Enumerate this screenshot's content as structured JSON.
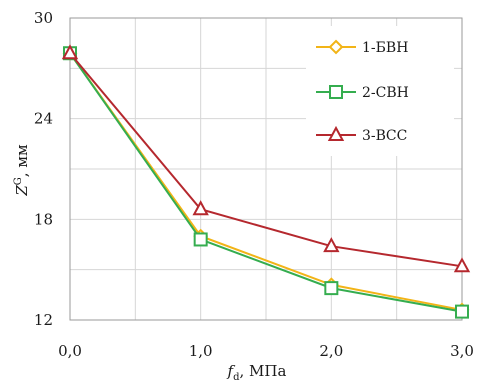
{
  "chart_data": {
    "type": "line",
    "xlabel": "f",
    "xlabel_sub": "d",
    "xlabel_unit": ", МПа",
    "ylabel": "Z",
    "ylabel_sup": "G",
    "ylabel_unit": ", мм",
    "x": [
      0.0,
      1.0,
      2.0,
      3.0
    ],
    "x_tick_labels": [
      "0,0",
      "1,0",
      "2,0",
      "3,0"
    ],
    "xlim": [
      0,
      3
    ],
    "ylim": [
      12,
      30
    ],
    "y_ticks": [
      12,
      18,
      24,
      30
    ],
    "y_tick_labels": [
      "12",
      "18",
      "24",
      "30"
    ],
    "grid": true,
    "legend_position": "top-right",
    "series": [
      {
        "name": "1-БВН",
        "marker": "diamond",
        "color": "#f2b417",
        "values": [
          27.9,
          17.0,
          14.1,
          12.6
        ]
      },
      {
        "name": "2-СВН",
        "marker": "square",
        "color": "#35ad4f",
        "values": [
          27.9,
          16.8,
          13.9,
          12.5
        ]
      },
      {
        "name": "3-ВСС",
        "marker": "triangle",
        "color": "#b5282e",
        "values": [
          27.9,
          18.6,
          16.4,
          15.2
        ]
      }
    ]
  }
}
